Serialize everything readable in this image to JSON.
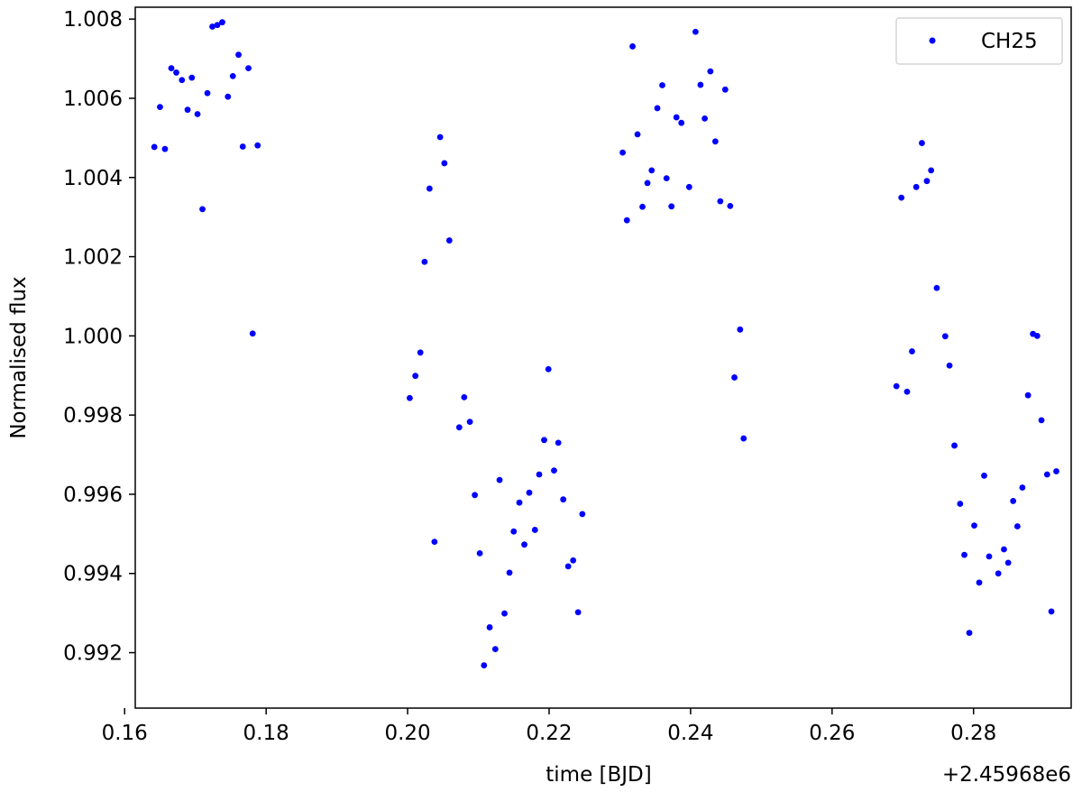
{
  "chart_data": {
    "type": "scatter",
    "title": "",
    "xlabel": "time [BJD]",
    "ylabel": "Normalised flux",
    "x_offset_label": "+2.45968e6",
    "xlim": [
      0.1615,
      0.2938
    ],
    "ylim": [
      0.9906,
      1.0083
    ],
    "xticks": [
      0.16,
      0.18,
      0.2,
      0.22,
      0.24,
      0.26,
      0.28
    ],
    "xtick_labels": [
      "0.16",
      "0.18",
      "0.20",
      "0.22",
      "0.24",
      "0.26",
      "0.28"
    ],
    "yticks": [
      0.992,
      0.994,
      0.996,
      0.998,
      1.0,
      1.002,
      1.004,
      1.006,
      1.008
    ],
    "ytick_labels": [
      "0.992",
      "0.994",
      "0.996",
      "0.998",
      "1.000",
      "1.002",
      "1.004",
      "1.006",
      "1.008"
    ],
    "grid": false,
    "legend_position": "top-right",
    "series": [
      {
        "name": "CH25",
        "color": "#0000ff",
        "marker": "dot",
        "points": [
          [
            0.1642,
            1.00477
          ],
          [
            0.165,
            1.00578
          ],
          [
            0.1657,
            1.00472
          ],
          [
            0.1666,
            1.00676
          ],
          [
            0.1673,
            1.00665
          ],
          [
            0.1681,
            1.00646
          ],
          [
            0.1689,
            1.00571
          ],
          [
            0.1695,
            1.00652
          ],
          [
            0.1703,
            1.0056
          ],
          [
            0.171,
            1.0032
          ],
          [
            0.1717,
            1.00613
          ],
          [
            0.1724,
            1.00781
          ],
          [
            0.1731,
            1.00785
          ],
          [
            0.1738,
            1.00792
          ],
          [
            0.1746,
            1.00604
          ],
          [
            0.1753,
            1.00656
          ],
          [
            0.1761,
            1.0071
          ],
          [
            0.1767,
            1.00478
          ],
          [
            0.1775,
            1.00676
          ],
          [
            0.1781,
            1.00006
          ],
          [
            0.1788,
            1.00481
          ],
          [
            0.2003,
            0.99843
          ],
          [
            0.2011,
            0.99899
          ],
          [
            0.2018,
            0.99958
          ],
          [
            0.2024,
            1.00187
          ],
          [
            0.2031,
            1.00372
          ],
          [
            0.2038,
            0.9948
          ],
          [
            0.2046,
            1.00502
          ],
          [
            0.2052,
            1.00436
          ],
          [
            0.2059,
            1.00241
          ],
          [
            0.2073,
            0.99769
          ],
          [
            0.208,
            0.99845
          ],
          [
            0.2088,
            0.99783
          ],
          [
            0.2095,
            0.99598
          ],
          [
            0.2102,
            0.99451
          ],
          [
            0.2108,
            0.99168
          ],
          [
            0.2116,
            0.99264
          ],
          [
            0.2124,
            0.99209
          ],
          [
            0.213,
            0.99636
          ],
          [
            0.2137,
            0.99299
          ],
          [
            0.2144,
            0.99402
          ],
          [
            0.215,
            0.99506
          ],
          [
            0.2158,
            0.99579
          ],
          [
            0.2165,
            0.99473
          ],
          [
            0.2172,
            0.99604
          ],
          [
            0.218,
            0.9951
          ],
          [
            0.2186,
            0.9965
          ],
          [
            0.2193,
            0.99737
          ],
          [
            0.2199,
            0.99916
          ],
          [
            0.2207,
            0.9966
          ],
          [
            0.2213,
            0.9973
          ],
          [
            0.222,
            0.99587
          ],
          [
            0.2227,
            0.99418
          ],
          [
            0.2234,
            0.99433
          ],
          [
            0.2241,
            0.99302
          ],
          [
            0.2247,
            0.9955
          ],
          [
            0.2304,
            1.00463
          ],
          [
            0.231,
            1.00292
          ],
          [
            0.2318,
            1.00731
          ],
          [
            0.2325,
            1.00509
          ],
          [
            0.2332,
            1.00326
          ],
          [
            0.2339,
            1.00386
          ],
          [
            0.2345,
            1.00418
          ],
          [
            0.2353,
            1.00575
          ],
          [
            0.236,
            1.00633
          ],
          [
            0.2366,
            1.00398
          ],
          [
            0.2373,
            1.00327
          ],
          [
            0.238,
            1.00552
          ],
          [
            0.2387,
            1.00538
          ],
          [
            0.2398,
            1.00376
          ],
          [
            0.2407,
            1.00768
          ],
          [
            0.2414,
            1.00634
          ],
          [
            0.242,
            1.00549
          ],
          [
            0.2428,
            1.00668
          ],
          [
            0.2435,
            1.00491
          ],
          [
            0.2442,
            1.0034
          ],
          [
            0.2449,
            1.00622
          ],
          [
            0.2456,
            1.00328
          ],
          [
            0.2462,
            0.99895
          ],
          [
            0.247,
            1.00016
          ],
          [
            0.2475,
            0.99741
          ],
          [
            0.2691,
            0.99873
          ],
          [
            0.2698,
            1.00349
          ],
          [
            0.2706,
            0.99859
          ],
          [
            0.2713,
            0.99961
          ],
          [
            0.2719,
            1.00376
          ],
          [
            0.2727,
            1.00487
          ],
          [
            0.2734,
            1.00391
          ],
          [
            0.274,
            1.00418
          ],
          [
            0.2748,
            1.00121
          ],
          [
            0.276,
            0.99999
          ],
          [
            0.2766,
            0.99925
          ],
          [
            0.2773,
            0.99723
          ],
          [
            0.2781,
            0.99576
          ],
          [
            0.2787,
            0.99447
          ],
          [
            0.2794,
            0.9925
          ],
          [
            0.2801,
            0.99521
          ],
          [
            0.2808,
            0.99377
          ],
          [
            0.2815,
            0.99647
          ],
          [
            0.2822,
            0.99443
          ],
          [
            0.2835,
            0.994
          ],
          [
            0.2843,
            0.99461
          ],
          [
            0.2849,
            0.99427
          ],
          [
            0.2856,
            0.99583
          ],
          [
            0.2862,
            0.99519
          ],
          [
            0.2869,
            0.99617
          ],
          [
            0.2877,
            0.9985
          ],
          [
            0.2884,
            1.00005
          ],
          [
            0.289,
            1.0
          ],
          [
            0.2896,
            0.99787
          ],
          [
            0.2904,
            0.9965
          ],
          [
            0.291,
            0.99304
          ],
          [
            0.2917,
            0.99658
          ]
        ]
      }
    ]
  }
}
